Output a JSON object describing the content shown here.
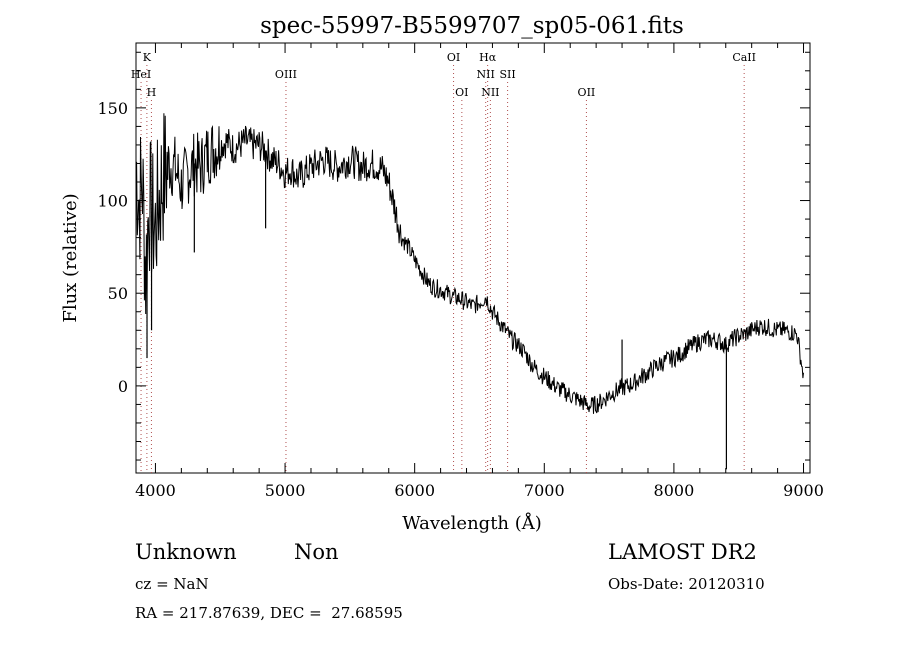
{
  "chart_data": {
    "type": "line",
    "title": "spec-55997-B5599707_sp05-061.fits",
    "xlabel": "Wavelength (Å)",
    "ylabel": "Flux (relative)",
    "xlim": [
      3850,
      9050
    ],
    "ylim": [
      -47,
      185
    ],
    "xticks": [
      4000,
      5000,
      6000,
      7000,
      8000,
      9000
    ],
    "yticks": [
      0,
      50,
      100,
      150
    ],
    "grid": false,
    "legend": "none",
    "line_color": "#000000",
    "marker_color": "#b05050",
    "lines": [
      {
        "label": "K",
        "wavelength": 3934,
        "row": 0
      },
      {
        "label": "HeI",
        "wavelength": 3889,
        "row": 1
      },
      {
        "label": "H",
        "wavelength": 3969,
        "row": 2
      },
      {
        "label": "OIII",
        "wavelength": 5007,
        "row": 1
      },
      {
        "label": "OI",
        "wavelength": 6300,
        "row": 0
      },
      {
        "label": "OI",
        "wavelength": 6364,
        "row": 2
      },
      {
        "label": "Hα",
        "wavelength": 6563,
        "row": 0
      },
      {
        "label": "NII",
        "wavelength": 6548,
        "row": 1
      },
      {
        "label": "NII",
        "wavelength": 6584,
        "row": 2
      },
      {
        "label": "SII",
        "wavelength": 6717,
        "row": 1
      },
      {
        "label": "OII",
        "wavelength": 7325,
        "row": 2
      },
      {
        "label": "CaII",
        "wavelength": 8542,
        "row": 0
      }
    ],
    "series": [
      {
        "x": [
          3850,
          3875,
          3900,
          3925,
          3950,
          3975,
          4000,
          4025,
          4050,
          4075,
          4100,
          4150,
          4200,
          4250,
          4300,
          4350,
          4400,
          4450,
          4500,
          4550,
          4600,
          4650,
          4700,
          4750,
          4800,
          4850,
          4900,
          4950,
          5000,
          5050,
          5100,
          5150,
          5200,
          5250,
          5300,
          5350,
          5400,
          5450,
          5500,
          5550,
          5600,
          5650,
          5700,
          5750,
          5800,
          5850,
          5900,
          5950,
          6000,
          6050,
          6100,
          6150,
          6200,
          6250,
          6300,
          6350,
          6400,
          6450,
          6500,
          6550,
          6600,
          6650,
          6700,
          6750,
          6800,
          6850,
          6900,
          6950,
          7000,
          7050,
          7100,
          7150,
          7200,
          7250,
          7300,
          7350,
          7400,
          7450,
          7500,
          7550,
          7600,
          7650,
          7700,
          7750,
          7800,
          7850,
          7900,
          7950,
          8000,
          8050,
          8100,
          8150,
          8200,
          8250,
          8300,
          8350,
          8400,
          8450,
          8500,
          8550,
          8600,
          8650,
          8700,
          8750,
          8800,
          8850,
          8900,
          8950,
          9000
        ],
        "y": [
          120,
          100,
          110,
          60,
          100,
          90,
          85,
          100,
          110,
          115,
          120,
          118,
          108,
          115,
          120,
          118,
          125,
          128,
          130,
          132,
          128,
          130,
          132,
          130,
          130,
          127,
          122,
          120,
          115,
          117,
          112,
          115,
          118,
          120,
          122,
          120,
          118,
          120,
          122,
          120,
          118,
          120,
          119,
          117,
          110,
          95,
          80,
          75,
          68,
          62,
          56,
          53,
          52,
          50,
          48,
          47,
          45,
          43,
          45,
          48,
          40,
          35,
          30,
          25,
          22,
          18,
          12,
          8,
          5,
          2,
          -1,
          -3,
          -5,
          -7,
          -9,
          -11,
          -10,
          -8,
          -5,
          -3,
          -1,
          0,
          2,
          5,
          7,
          10,
          12,
          14,
          15,
          17,
          20,
          22,
          24,
          25,
          25,
          24,
          22,
          25,
          27,
          28,
          30,
          32,
          32,
          31,
          30,
          30,
          29,
          28,
          5
        ],
        "spikes": [
          {
            "x": 8405,
            "y": -45
          },
          {
            "x": 7600,
            "y": 25
          },
          {
            "x": 4850,
            "y": 85
          },
          {
            "x": 4300,
            "y": 72
          },
          {
            "x": 3935,
            "y": 15
          },
          {
            "x": 3970,
            "y": 30
          }
        ]
      }
    ]
  },
  "info": {
    "object_class": "Unknown",
    "object_subclass": "Non",
    "survey": "LAMOST DR2",
    "redshift": "cz = NaN",
    "obs_date": "Obs-Date: 20120310",
    "coords": "RA = 217.87639, DEC =  27.68595"
  }
}
